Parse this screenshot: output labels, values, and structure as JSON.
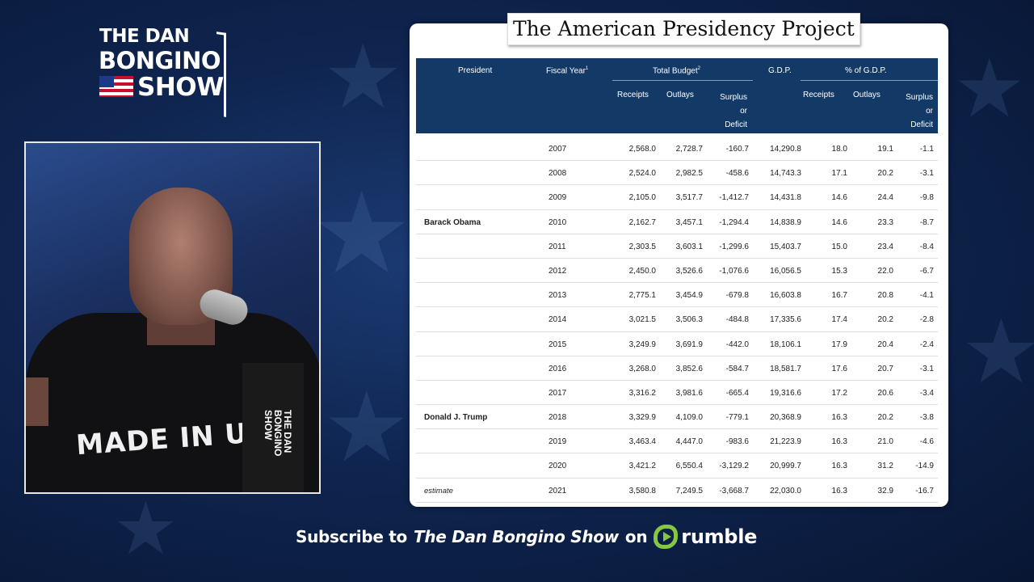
{
  "logo": {
    "line1": "THE DAN",
    "line2": "BONGINO",
    "line3": "SHOW"
  },
  "video": {
    "shirt_text": "MADE IN USA",
    "mic_logo": "THE DAN BONGINO SHOW"
  },
  "card": {
    "title": "The American Presidency Project",
    "headers": {
      "president": "President",
      "fiscal_year": "Fiscal Year",
      "fiscal_year_sup": "1",
      "total_budget": "Total Budget",
      "total_budget_sup": "2",
      "gdp": "G.D.P.",
      "pct_gdp": "% of G.D.P.",
      "receipts": "Receipts",
      "outlays": "Outlays",
      "surplus_l1": "Surplus",
      "surplus_l2": "or",
      "surplus_l3": "Deficit",
      "receipts2": "Receipts",
      "outlays2": "Outlays",
      "surplus2_l1": "Surplus",
      "surplus2_l2": "or",
      "surplus2_l3": "Deficit"
    },
    "rows": [
      {
        "president": "",
        "year": "2007",
        "receipts": "2,568.0",
        "outlays": "2,728.7",
        "surplus": "-160.7",
        "gdp": "14,290.8",
        "p_receipts": "18.0",
        "p_outlays": "19.1",
        "p_surplus": "-1.1"
      },
      {
        "president": "",
        "year": "2008",
        "receipts": "2,524.0",
        "outlays": "2,982.5",
        "surplus": "-458.6",
        "gdp": "14,743.3",
        "p_receipts": "17.1",
        "p_outlays": "20.2",
        "p_surplus": "-3.1"
      },
      {
        "president": "",
        "year": "2009",
        "receipts": "2,105.0",
        "outlays": "3,517.7",
        "surplus": "-1,412.7",
        "gdp": "14,431.8",
        "p_receipts": "14.6",
        "p_outlays": "24.4",
        "p_surplus": "-9.8"
      },
      {
        "president": "Barack Obama",
        "year": "2010",
        "receipts": "2,162.7",
        "outlays": "3,457.1",
        "surplus": "-1,294.4",
        "gdp": "14,838.9",
        "p_receipts": "14.6",
        "p_outlays": "23.3",
        "p_surplus": "-8.7"
      },
      {
        "president": "",
        "year": "2011",
        "receipts": "2,303.5",
        "outlays": "3,603.1",
        "surplus": "-1,299.6",
        "gdp": "15,403.7",
        "p_receipts": "15.0",
        "p_outlays": "23.4",
        "p_surplus": "-8.4"
      },
      {
        "president": "",
        "year": "2012",
        "receipts": "2,450.0",
        "outlays": "3,526.6",
        "surplus": "-1,076.6",
        "gdp": "16,056.5",
        "p_receipts": "15.3",
        "p_outlays": "22.0",
        "p_surplus": "-6.7"
      },
      {
        "president": "",
        "year": "2013",
        "receipts": "2,775.1",
        "outlays": "3,454.9",
        "surplus": "-679.8",
        "gdp": "16,603.8",
        "p_receipts": "16.7",
        "p_outlays": "20.8",
        "p_surplus": "-4.1"
      },
      {
        "president": "",
        "year": "2014",
        "receipts": "3,021.5",
        "outlays": "3,506.3",
        "surplus": "-484.8",
        "gdp": "17,335.6",
        "p_receipts": "17.4",
        "p_outlays": "20.2",
        "p_surplus": "-2.8"
      },
      {
        "president": "",
        "year": "2015",
        "receipts": "3,249.9",
        "outlays": "3,691.9",
        "surplus": "-442.0",
        "gdp": "18,106.1",
        "p_receipts": "17.9",
        "p_outlays": "20.4",
        "p_surplus": "-2.4"
      },
      {
        "president": "",
        "year": "2016",
        "receipts": "3,268.0",
        "outlays": "3,852.6",
        "surplus": "-584.7",
        "gdp": "18,581.7",
        "p_receipts": "17.6",
        "p_outlays": "20.7",
        "p_surplus": "-3.1"
      },
      {
        "president": "",
        "year": "2017",
        "receipts": "3,316.2",
        "outlays": "3,981.6",
        "surplus": "-665.4",
        "gdp": "19,316.6",
        "p_receipts": "17.2",
        "p_outlays": "20.6",
        "p_surplus": "-3.4"
      },
      {
        "president": "Donald J. Trump",
        "year": "2018",
        "receipts": "3,329.9",
        "outlays": "4,109.0",
        "surplus": "-779.1",
        "gdp": "20,368.9",
        "p_receipts": "16.3",
        "p_outlays": "20.2",
        "p_surplus": "-3.8"
      },
      {
        "president": "",
        "year": "2019",
        "receipts": "3,463.4",
        "outlays": "4,447.0",
        "surplus": "-983.6",
        "gdp": "21,223.9",
        "p_receipts": "16.3",
        "p_outlays": "21.0",
        "p_surplus": "-4.6"
      },
      {
        "president": "",
        "year": "2020",
        "receipts": "3,421.2",
        "outlays": "6,550.4",
        "surplus": "-3,129.2",
        "gdp": "20,999.7",
        "p_receipts": "16.3",
        "p_outlays": "31.2",
        "p_surplus": "-14.9"
      },
      {
        "president": "estimate",
        "year": "2021",
        "receipts": "3,580.8",
        "outlays": "7,249.5",
        "surplus": "-3,668.7",
        "gdp": "22,030.0",
        "p_receipts": "16.3",
        "p_outlays": "32.9",
        "p_surplus": "-16.7",
        "estimate": true
      }
    ]
  },
  "subscribe": {
    "prefix": "Subscribe to",
    "show": "The Dan Bongino Show",
    "on": "on",
    "platform": "rumble"
  },
  "colors": {
    "table_header": "#133a66",
    "rumble_green": "#85c742",
    "background": "#0f2550"
  },
  "icons": {
    "rumble": "rumble-logo-icon",
    "star": "star-icon",
    "flag": "flag-icon"
  }
}
